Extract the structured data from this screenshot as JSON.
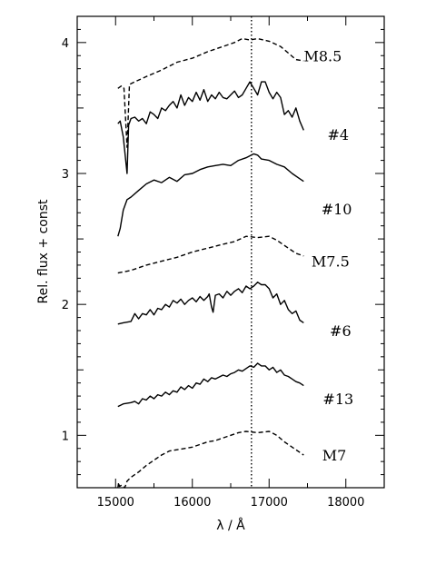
{
  "chart_data": {
    "type": "line",
    "title": "",
    "xlabel": "λ / Å",
    "ylabel": "Rel. flux + const",
    "xlim": [
      14500,
      18500
    ],
    "ylim": [
      0.6,
      4.2
    ],
    "grid": false,
    "reference_line": {
      "x": 16770,
      "style": "dotted"
    },
    "x_ticks": [
      {
        "value": 15000,
        "label": "15000"
      },
      {
        "value": 16000,
        "label": "16000"
      },
      {
        "value": 17000,
        "label": "17000"
      },
      {
        "value": 18000,
        "label": "18000"
      }
    ],
    "y_ticks": [
      {
        "value": 1,
        "label": "1"
      },
      {
        "value": 2,
        "label": "2"
      },
      {
        "value": 3,
        "label": "3"
      },
      {
        "value": 4,
        "label": "4"
      }
    ],
    "series": [
      {
        "name": "M8.5",
        "style": "dashed",
        "label_at": [
          17700,
          3.9
        ],
        "points": [
          [
            15030,
            3.65
          ],
          [
            15080,
            3.67
          ],
          [
            15110,
            3.65
          ],
          [
            15150,
            3.2
          ],
          [
            15180,
            3.68
          ],
          [
            15250,
            3.7
          ],
          [
            15400,
            3.74
          ],
          [
            15600,
            3.79
          ],
          [
            15800,
            3.85
          ],
          [
            16000,
            3.88
          ],
          [
            16200,
            3.93
          ],
          [
            16400,
            3.97
          ],
          [
            16550,
            4.0
          ],
          [
            16650,
            4.03
          ],
          [
            16750,
            4.02
          ],
          [
            16850,
            4.03
          ],
          [
            17000,
            4.01
          ],
          [
            17150,
            3.97
          ],
          [
            17250,
            3.92
          ],
          [
            17350,
            3.87
          ],
          [
            17450,
            3.86
          ]
        ]
      },
      {
        "name": "#4",
        "style": "solid",
        "label_at": [
          17900,
          3.3
        ],
        "points": [
          [
            15030,
            3.38
          ],
          [
            15060,
            3.4
          ],
          [
            15100,
            3.28
          ],
          [
            15150,
            3.0
          ],
          [
            15170,
            3.37
          ],
          [
            15200,
            3.42
          ],
          [
            15250,
            3.43
          ],
          [
            15300,
            3.4
          ],
          [
            15350,
            3.42
          ],
          [
            15400,
            3.38
          ],
          [
            15450,
            3.47
          ],
          [
            15500,
            3.45
          ],
          [
            15550,
            3.42
          ],
          [
            15600,
            3.5
          ],
          [
            15650,
            3.48
          ],
          [
            15700,
            3.52
          ],
          [
            15750,
            3.55
          ],
          [
            15800,
            3.5
          ],
          [
            15850,
            3.6
          ],
          [
            15900,
            3.52
          ],
          [
            15950,
            3.58
          ],
          [
            16000,
            3.55
          ],
          [
            16050,
            3.62
          ],
          [
            16100,
            3.56
          ],
          [
            16150,
            3.64
          ],
          [
            16200,
            3.55
          ],
          [
            16250,
            3.6
          ],
          [
            16300,
            3.57
          ],
          [
            16350,
            3.62
          ],
          [
            16400,
            3.58
          ],
          [
            16450,
            3.57
          ],
          [
            16500,
            3.6
          ],
          [
            16550,
            3.63
          ],
          [
            16600,
            3.58
          ],
          [
            16650,
            3.6
          ],
          [
            16700,
            3.65
          ],
          [
            16750,
            3.7
          ],
          [
            16800,
            3.65
          ],
          [
            16850,
            3.6
          ],
          [
            16900,
            3.7
          ],
          [
            16950,
            3.7
          ],
          [
            17000,
            3.62
          ],
          [
            17050,
            3.57
          ],
          [
            17100,
            3.62
          ],
          [
            17150,
            3.58
          ],
          [
            17200,
            3.45
          ],
          [
            17250,
            3.48
          ],
          [
            17300,
            3.43
          ],
          [
            17350,
            3.5
          ],
          [
            17400,
            3.4
          ],
          [
            17450,
            3.33
          ]
        ]
      },
      {
        "name": "#10",
        "style": "solid",
        "label_at": [
          17880,
          2.73
        ],
        "points": [
          [
            15030,
            2.52
          ],
          [
            15060,
            2.58
          ],
          [
            15100,
            2.72
          ],
          [
            15150,
            2.8
          ],
          [
            15200,
            2.82
          ],
          [
            15300,
            2.87
          ],
          [
            15400,
            2.92
          ],
          [
            15500,
            2.95
          ],
          [
            15600,
            2.93
          ],
          [
            15700,
            2.97
          ],
          [
            15800,
            2.94
          ],
          [
            15900,
            2.99
          ],
          [
            16000,
            3.0
          ],
          [
            16100,
            3.03
          ],
          [
            16200,
            3.05
          ],
          [
            16300,
            3.06
          ],
          [
            16400,
            3.07
          ],
          [
            16500,
            3.06
          ],
          [
            16600,
            3.1
          ],
          [
            16700,
            3.12
          ],
          [
            16800,
            3.15
          ],
          [
            16850,
            3.14
          ],
          [
            16900,
            3.11
          ],
          [
            17000,
            3.1
          ],
          [
            17100,
            3.07
          ],
          [
            17200,
            3.05
          ],
          [
            17300,
            3.0
          ],
          [
            17400,
            2.96
          ],
          [
            17450,
            2.94
          ]
        ]
      },
      {
        "name": "M7.5",
        "style": "dashed",
        "label_at": [
          17800,
          2.33
        ],
        "points": [
          [
            15030,
            2.24
          ],
          [
            15200,
            2.26
          ],
          [
            15400,
            2.3
          ],
          [
            15600,
            2.33
          ],
          [
            15800,
            2.36
          ],
          [
            16000,
            2.4
          ],
          [
            16200,
            2.43
          ],
          [
            16400,
            2.46
          ],
          [
            16550,
            2.48
          ],
          [
            16700,
            2.52
          ],
          [
            16850,
            2.51
          ],
          [
            17000,
            2.52
          ],
          [
            17100,
            2.49
          ],
          [
            17250,
            2.43
          ],
          [
            17350,
            2.39
          ],
          [
            17450,
            2.37
          ]
        ]
      },
      {
        "name": "#6",
        "style": "solid",
        "label_at": [
          17930,
          1.8
        ],
        "points": [
          [
            15030,
            1.85
          ],
          [
            15100,
            1.86
          ],
          [
            15200,
            1.87
          ],
          [
            15250,
            1.93
          ],
          [
            15300,
            1.89
          ],
          [
            15350,
            1.93
          ],
          [
            15400,
            1.92
          ],
          [
            15450,
            1.96
          ],
          [
            15500,
            1.92
          ],
          [
            15550,
            1.97
          ],
          [
            15600,
            1.96
          ],
          [
            15650,
            2.0
          ],
          [
            15700,
            1.98
          ],
          [
            15750,
            2.03
          ],
          [
            15800,
            2.01
          ],
          [
            15850,
            2.04
          ],
          [
            15900,
            2.0
          ],
          [
            15950,
            2.03
          ],
          [
            16000,
            2.05
          ],
          [
            16050,
            2.02
          ],
          [
            16100,
            2.06
          ],
          [
            16150,
            2.03
          ],
          [
            16200,
            2.06
          ],
          [
            16220,
            2.08
          ],
          [
            16250,
            1.98
          ],
          [
            16270,
            1.94
          ],
          [
            16300,
            2.07
          ],
          [
            16350,
            2.08
          ],
          [
            16400,
            2.05
          ],
          [
            16450,
            2.1
          ],
          [
            16500,
            2.07
          ],
          [
            16550,
            2.1
          ],
          [
            16600,
            2.12
          ],
          [
            16650,
            2.09
          ],
          [
            16700,
            2.14
          ],
          [
            16750,
            2.12
          ],
          [
            16800,
            2.14
          ],
          [
            16850,
            2.17
          ],
          [
            16900,
            2.15
          ],
          [
            16950,
            2.15
          ],
          [
            17000,
            2.12
          ],
          [
            17050,
            2.05
          ],
          [
            17100,
            2.08
          ],
          [
            17150,
            2.0
          ],
          [
            17200,
            2.03
          ],
          [
            17250,
            1.96
          ],
          [
            17300,
            1.93
          ],
          [
            17350,
            1.95
          ],
          [
            17400,
            1.88
          ],
          [
            17450,
            1.86
          ]
        ]
      },
      {
        "name": "#13",
        "style": "solid",
        "label_at": [
          17900,
          1.28
        ],
        "points": [
          [
            15030,
            1.22
          ],
          [
            15100,
            1.24
          ],
          [
            15200,
            1.25
          ],
          [
            15250,
            1.26
          ],
          [
            15300,
            1.24
          ],
          [
            15350,
            1.28
          ],
          [
            15400,
            1.27
          ],
          [
            15450,
            1.3
          ],
          [
            15500,
            1.28
          ],
          [
            15550,
            1.31
          ],
          [
            15600,
            1.3
          ],
          [
            15650,
            1.33
          ],
          [
            15700,
            1.31
          ],
          [
            15750,
            1.34
          ],
          [
            15800,
            1.33
          ],
          [
            15850,
            1.37
          ],
          [
            15900,
            1.35
          ],
          [
            15950,
            1.38
          ],
          [
            16000,
            1.36
          ],
          [
            16050,
            1.4
          ],
          [
            16100,
            1.39
          ],
          [
            16150,
            1.43
          ],
          [
            16200,
            1.41
          ],
          [
            16250,
            1.44
          ],
          [
            16300,
            1.43
          ],
          [
            16400,
            1.46
          ],
          [
            16450,
            1.45
          ],
          [
            16500,
            1.47
          ],
          [
            16550,
            1.48
          ],
          [
            16600,
            1.5
          ],
          [
            16650,
            1.49
          ],
          [
            16700,
            1.51
          ],
          [
            16750,
            1.53
          ],
          [
            16800,
            1.52
          ],
          [
            16850,
            1.55
          ],
          [
            16900,
            1.53
          ],
          [
            16950,
            1.53
          ],
          [
            17000,
            1.5
          ],
          [
            17050,
            1.52
          ],
          [
            17100,
            1.48
          ],
          [
            17150,
            1.5
          ],
          [
            17200,
            1.46
          ],
          [
            17250,
            1.45
          ],
          [
            17300,
            1.43
          ],
          [
            17350,
            1.41
          ],
          [
            17400,
            1.4
          ],
          [
            17450,
            1.38
          ]
        ]
      },
      {
        "name": "M7",
        "style": "dashed",
        "label_at": [
          17850,
          0.85
        ],
        "points": [
          [
            15030,
            0.6
          ],
          [
            15040,
            0.64
          ],
          [
            15050,
            0.61
          ],
          [
            15080,
            0.62
          ],
          [
            15120,
            0.6
          ],
          [
            15150,
            0.65
          ],
          [
            15200,
            0.68
          ],
          [
            15300,
            0.72
          ],
          [
            15400,
            0.77
          ],
          [
            15500,
            0.81
          ],
          [
            15600,
            0.85
          ],
          [
            15700,
            0.88
          ],
          [
            15800,
            0.89
          ],
          [
            15900,
            0.9
          ],
          [
            16000,
            0.91
          ],
          [
            16100,
            0.93
          ],
          [
            16200,
            0.95
          ],
          [
            16300,
            0.96
          ],
          [
            16400,
            0.98
          ],
          [
            16500,
            1.0
          ],
          [
            16600,
            1.02
          ],
          [
            16700,
            1.03
          ],
          [
            16850,
            1.02
          ],
          [
            17000,
            1.03
          ],
          [
            17100,
            1.0
          ],
          [
            17200,
            0.95
          ],
          [
            17300,
            0.91
          ],
          [
            17400,
            0.87
          ],
          [
            17450,
            0.85
          ]
        ]
      }
    ]
  }
}
